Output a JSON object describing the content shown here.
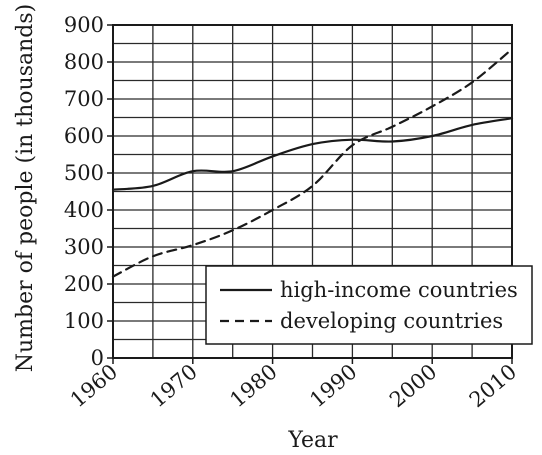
{
  "chart_data": {
    "type": "line",
    "title": "",
    "xlabel": "Year",
    "ylabel": "Number of people (in thousands)",
    "x": [
      1960,
      1965,
      1970,
      1975,
      1980,
      1985,
      1990,
      1995,
      2000,
      2005,
      2010
    ],
    "xticks": [
      "1960",
      "1970",
      "1980",
      "1990",
      "2000",
      "2010"
    ],
    "yticks": [
      "0",
      "100",
      "200",
      "300",
      "400",
      "500",
      "600",
      "700",
      "800",
      "900"
    ],
    "xlim": [
      1960,
      2010
    ],
    "ylim": [
      0,
      900
    ],
    "grid": true,
    "legend_position": "bottom-right",
    "series": [
      {
        "name": "high-income countries",
        "style": "solid",
        "values": [
          455,
          465,
          505,
          505,
          545,
          578,
          590,
          585,
          600,
          630,
          648
        ]
      },
      {
        "name": "developing countries",
        "style": "dashed",
        "values": [
          220,
          275,
          305,
          345,
          400,
          465,
          575,
          625,
          680,
          745,
          835
        ]
      }
    ]
  }
}
